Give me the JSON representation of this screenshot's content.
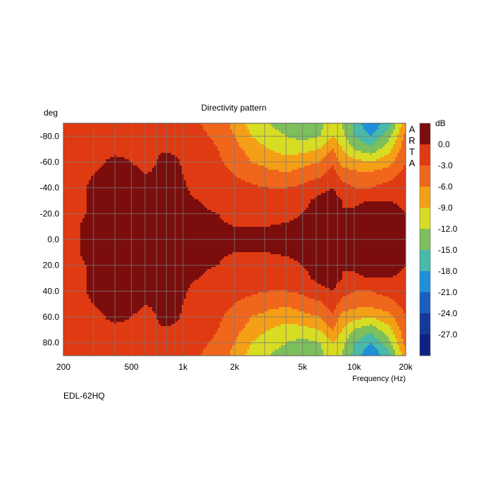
{
  "chart_data": {
    "type": "heatmap",
    "title": "Directivity pattern",
    "xlabel": "Frequency (Hz)",
    "ylabel": "deg",
    "x_scale": "log",
    "x_range": [
      200,
      20000
    ],
    "y_range": [
      -90,
      90
    ],
    "x_ticks": [
      {
        "value": 200,
        "label": "200"
      },
      {
        "value": 500,
        "label": "500"
      },
      {
        "value": 1000,
        "label": "1k"
      },
      {
        "value": 2000,
        "label": "2k"
      },
      {
        "value": 5000,
        "label": "5k"
      },
      {
        "value": 10000,
        "label": "10k"
      },
      {
        "value": 20000,
        "label": "20k"
      }
    ],
    "y_ticks": [
      {
        "value": -80,
        "label": "-80.0"
      },
      {
        "value": -60,
        "label": "-60.0"
      },
      {
        "value": -40,
        "label": "-40.0"
      },
      {
        "value": -20,
        "label": "-20.0"
      },
      {
        "value": 0,
        "label": "0.0"
      },
      {
        "value": 20,
        "label": "20.0"
      },
      {
        "value": 40,
        "label": "40.0"
      },
      {
        "value": 60,
        "label": "60.0"
      },
      {
        "value": 80,
        "label": "80.0"
      }
    ],
    "grid": true,
    "colorbar": {
      "unit": "dB",
      "labels": [
        "0.0",
        "-3.0",
        "-6.0",
        "-9.0",
        "-12.0",
        "-15.0",
        "-18.0",
        "-21.0",
        "-24.0",
        "-27.0"
      ],
      "colors": [
        "#7b0d0d",
        "#e03a12",
        "#f0671c",
        "#f59f16",
        "#d8dc22",
        "#7cbf5c",
        "#48b9aa",
        "#1e8fd8",
        "#1a5fc0",
        "#13399a",
        "#0e2080"
      ]
    },
    "freqs": [
      200,
      250,
      300,
      350,
      400,
      500,
      600,
      700,
      800,
      1000,
      1250,
      1600,
      2000,
      2500,
      3150,
      4000,
      5000,
      6300,
      7500,
      8500,
      10000,
      12500,
      16000,
      20000
    ],
    "angles": [
      -90,
      -80,
      -70,
      -60,
      -50,
      -40,
      -30,
      -20,
      -10,
      0,
      10,
      20,
      30,
      40,
      50,
      60,
      70,
      80,
      90
    ],
    "level_db": [
      [
        -4.5,
        -6,
        -4.5,
        -4,
        -4,
        -4.5,
        -5,
        -4.5,
        -4.5,
        -5,
        -6,
        -7,
        -10,
        -13,
        -15,
        -16,
        -17,
        -16,
        -13,
        -15,
        -19,
        -24,
        -19,
        -10
      ],
      [
        -4.5,
        -5,
        -4.5,
        -4,
        -3.5,
        -4,
        -4.5,
        -4,
        -4,
        -4.5,
        -5.5,
        -6.5,
        -9,
        -12,
        -14,
        -15,
        -16,
        -15,
        -12,
        -14,
        -18,
        -21,
        -16,
        -8
      ],
      [
        -4,
        -4.5,
        -4,
        -3.5,
        -3.5,
        -3.5,
        -4,
        -3.5,
        -3.5,
        -4,
        -5,
        -6,
        -8,
        -10,
        -12,
        -13,
        -13,
        -12,
        -9,
        -12,
        -15,
        -17,
        -13,
        -7
      ],
      [
        -3.5,
        -4,
        -3.5,
        -3,
        -2.5,
        -3,
        -3.5,
        -3,
        -1,
        -3.5,
        -4.5,
        -5.5,
        -7,
        -9,
        -10,
        -11,
        -10,
        -9,
        -6.5,
        -10,
        -11,
        -12,
        -10,
        -6
      ],
      [
        -3.5,
        -3.5,
        -3,
        -2.5,
        -2,
        -2.5,
        -3,
        -2.8,
        -0.5,
        -3,
        -4,
        -5,
        -6,
        -7,
        -8,
        -8.5,
        -7.5,
        -6.5,
        -4.5,
        -7,
        -8,
        -8,
        -7,
        -5
      ],
      [
        -3.5,
        -3.5,
        -2.5,
        -1.5,
        -1.5,
        -1,
        -2.8,
        -2.6,
        -0.5,
        -2.8,
        -3.5,
        -4,
        -5,
        -5.5,
        -6,
        -6,
        -5.5,
        -4,
        -3,
        -5,
        -6,
        -6,
        -5,
        -4.5
      ],
      [
        -3.5,
        -3.5,
        -2.5,
        -2.5,
        -1,
        -3,
        -2.8,
        -2.6,
        -0.5,
        -2.8,
        -3,
        -3.5,
        -4,
        -4.5,
        -4.5,
        -4.5,
        -4,
        -2,
        -1.5,
        -3,
        -3.5,
        -3,
        -3,
        -3.5
      ],
      [
        -3.5,
        -3.5,
        -2.4,
        -0.5,
        -2.5,
        -2.8,
        -2.8,
        -2.6,
        -0.5,
        -2.6,
        -2.8,
        -3,
        -3.5,
        -3.5,
        -3.5,
        -3.5,
        -3,
        -1.5,
        -0.5,
        -3,
        -2.5,
        -1,
        -2,
        -3
      ],
      [
        -3.5,
        -3,
        -1.5,
        -0.5,
        -2.6,
        -2.8,
        -2.7,
        -2.6,
        -0.5,
        -2.6,
        -2.7,
        -2.8,
        -3,
        -3,
        -3,
        -2.8,
        -2.6,
        -2.2,
        -2,
        -2.5,
        -1,
        -0.5,
        -1,
        -2
      ],
      [
        -3.5,
        -3,
        -0.5,
        -0.5,
        -1.5,
        -2.7,
        -2.7,
        -2.6,
        -0.5,
        -2.5,
        -2.6,
        -2.7,
        -2.8,
        -2.8,
        -2.8,
        -2.7,
        -2.5,
        -2.2,
        -2.2,
        -2.5,
        -0.8,
        -0.3,
        -0.8,
        -1.5
      ],
      [
        -3.5,
        -3,
        -1.5,
        -0.5,
        -2.6,
        -2.8,
        -2.7,
        -2.6,
        -0.5,
        -2.6,
        -2.7,
        -2.8,
        -3,
        -3,
        -3,
        -2.8,
        -2.6,
        -2.2,
        -2,
        -2.5,
        -1,
        -0.5,
        -1,
        -2
      ],
      [
        -3.5,
        -3.5,
        -2.4,
        -0.5,
        -2.5,
        -2.8,
        -2.8,
        -2.6,
        -0.5,
        -2.6,
        -2.8,
        -3,
        -3.5,
        -3.5,
        -3.5,
        -3.5,
        -3,
        -1.5,
        -0.5,
        -3,
        -2.5,
        -1,
        -2,
        -3
      ],
      [
        -3.5,
        -3.5,
        -2.5,
        -2.5,
        -1,
        -3,
        -2.8,
        -2.6,
        -0.5,
        -2.8,
        -3,
        -3.5,
        -4,
        -4.5,
        -4.5,
        -4.5,
        -4,
        -2,
        -1.5,
        -3,
        -3.5,
        -3,
        -3,
        -3.5
      ],
      [
        -3.5,
        -3.5,
        -2.5,
        -1.5,
        -1.5,
        -1,
        -2.8,
        -2.6,
        -0.5,
        -2.8,
        -3.5,
        -4,
        -5,
        -5.5,
        -6,
        -6,
        -5.5,
        -4,
        -3,
        -5,
        -6,
        -6,
        -5,
        -4.5
      ],
      [
        -3.5,
        -3.5,
        -3,
        -2.5,
        -2,
        -2.5,
        -3,
        -2.8,
        -0.5,
        -3,
        -4,
        -5,
        -6,
        -7,
        -8,
        -8.5,
        -7.5,
        -6.5,
        -4.5,
        -7,
        -8,
        -8,
        -7,
        -5
      ],
      [
        -3.5,
        -4,
        -3.5,
        -3,
        -2.5,
        -3,
        -3.5,
        -3,
        -1,
        -3.5,
        -4.5,
        -5.5,
        -7,
        -9,
        -10,
        -11,
        -10,
        -9,
        -6.5,
        -10,
        -11,
        -12,
        -10,
        -6
      ],
      [
        -4,
        -4.5,
        -4,
        -3.5,
        -3.5,
        -3.5,
        -4,
        -3.5,
        -3.5,
        -4,
        -5,
        -6,
        -8,
        -10,
        -12,
        -13,
        -13,
        -12,
        -9,
        -12,
        -15,
        -17,
        -13,
        -7
      ],
      [
        -4.5,
        -5,
        -4.5,
        -4,
        -3.5,
        -4,
        -4.5,
        -4,
        -4,
        -4.5,
        -5.5,
        -6.5,
        -9,
        -12,
        -14,
        -15,
        -16,
        -15,
        -12,
        -14,
        -18,
        -21,
        -16,
        -8
      ],
      [
        -4.5,
        -6,
        -4.5,
        -4,
        -4,
        -4.5,
        -5,
        -4.5,
        -4.5,
        -5,
        -6,
        -7,
        -10,
        -13,
        -15,
        -16,
        -17,
        -16,
        -13,
        -15,
        -19,
        -24,
        -19,
        -10
      ]
    ]
  },
  "watermark": "ARTA",
  "footer_label": "EDL-62HQ"
}
